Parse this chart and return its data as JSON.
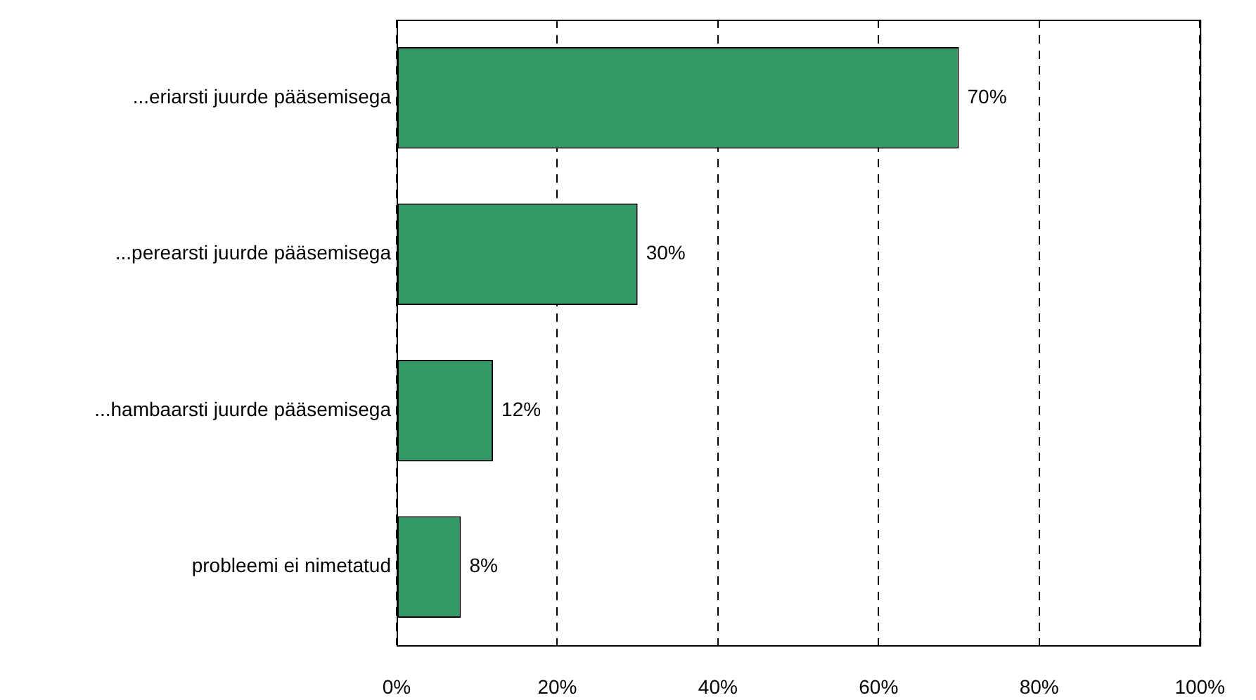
{
  "chart_data": {
    "type": "bar",
    "orientation": "horizontal",
    "categories": [
      "...eriarsti juurde pääsemisega",
      "...perearsti juurde pääsemisega",
      "...hambaarsti juurde pääsemisega",
      "probleemi ei nimetatud"
    ],
    "values": [
      70,
      30,
      12,
      8
    ],
    "value_labels": [
      "70%",
      "30%",
      "12%",
      "8%"
    ],
    "color": "#339966",
    "xlim": [
      0,
      100
    ],
    "xticks": [
      {
        "value": 0,
        "label": "0%"
      },
      {
        "value": 20,
        "label": "20%"
      },
      {
        "value": 40,
        "label": "40%"
      },
      {
        "value": 60,
        "label": "60%"
      },
      {
        "value": 80,
        "label": "80%"
      },
      {
        "value": 100,
        "label": "100%"
      }
    ],
    "grid": "x",
    "legend": false
  }
}
